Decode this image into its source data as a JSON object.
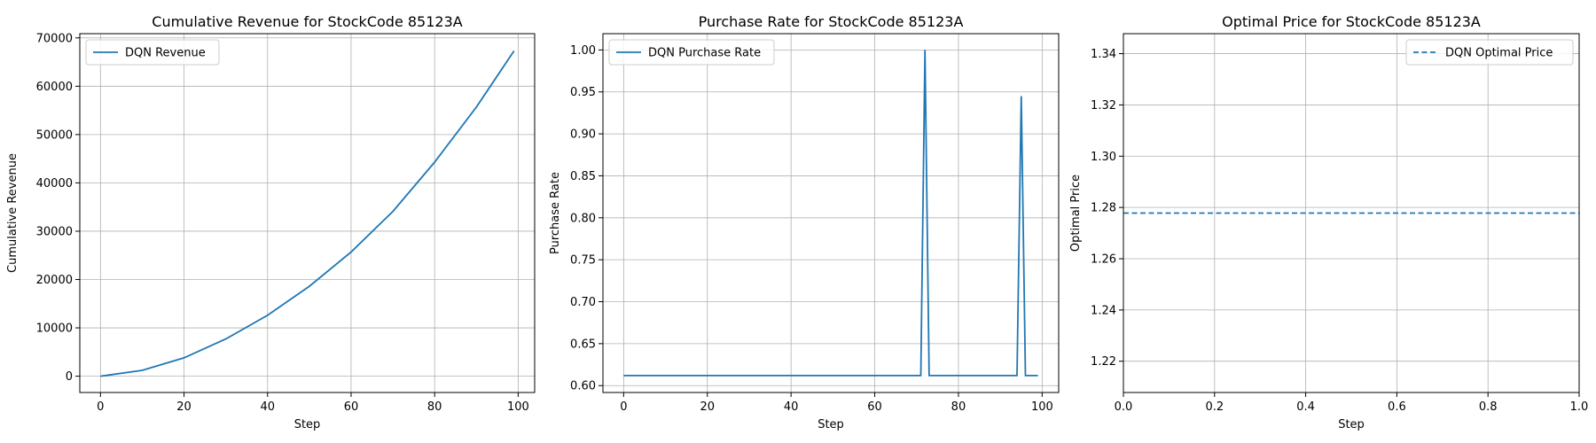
{
  "chart_data": [
    {
      "type": "line",
      "title": "Cumulative Revenue for StockCode 85123A",
      "xlabel": "Step",
      "ylabel": "Cumulative Revenue",
      "xlim": [
        -4.95,
        103.95
      ],
      "ylim": [
        -3375,
        70875
      ],
      "xticks": [
        0,
        20,
        40,
        60,
        80,
        100
      ],
      "yticks": [
        0,
        10000,
        20000,
        30000,
        40000,
        50000,
        60000,
        70000
      ],
      "grid": true,
      "legend": "upper left",
      "series": [
        {
          "name": "DQN Revenue",
          "style": "solid",
          "color": "#1f77b4",
          "x": [
            0,
            10,
            20,
            30,
            40,
            50,
            60,
            70,
            80,
            90,
            99
          ],
          "y": [
            0,
            1200,
            3800,
            7700,
            12600,
            18600,
            25700,
            34100,
            44300,
            55700,
            67300
          ]
        }
      ]
    },
    {
      "type": "line",
      "title": "Purchase Rate for StockCode 85123A",
      "xlabel": "Step",
      "ylabel": "Purchase Rate",
      "xlim": [
        -4.95,
        103.95
      ],
      "ylim": [
        0.5918,
        1.0194
      ],
      "xticks": [
        0,
        20,
        40,
        60,
        80,
        100
      ],
      "yticks": [
        0.6,
        0.65,
        0.7,
        0.75,
        0.8,
        0.85,
        0.9,
        0.95,
        1.0
      ],
      "ytick_labels": [
        "0.60",
        "0.65",
        "0.70",
        "0.75",
        "0.80",
        "0.85",
        "0.90",
        "0.95",
        "1.00"
      ],
      "grid": true,
      "legend": "upper left",
      "series": [
        {
          "name": "DQN Purchase Rate",
          "style": "solid",
          "color": "#1f77b4",
          "x": [
            0,
            71,
            72,
            73,
            94,
            95,
            96,
            99
          ],
          "y": [
            0.612,
            0.612,
            1.0,
            0.612,
            0.612,
            0.945,
            0.612,
            0.612
          ]
        }
      ]
    },
    {
      "type": "line",
      "title": "Optimal Price for StockCode 85123A",
      "xlabel": "Step",
      "ylabel": "Optimal Price",
      "xlim": [
        0,
        1
      ],
      "ylim": [
        1.2078,
        1.3478
      ],
      "xticks": [
        0,
        0.2,
        0.4,
        0.6,
        0.8,
        1.0
      ],
      "xtick_labels": [
        "0.0",
        "0.2",
        "0.4",
        "0.6",
        "0.8",
        "1.0"
      ],
      "yticks": [
        1.22,
        1.24,
        1.26,
        1.28,
        1.3,
        1.32,
        1.34
      ],
      "ytick_labels": [
        "1.22",
        "1.24",
        "1.26",
        "1.28",
        "1.30",
        "1.32",
        "1.34"
      ],
      "grid": true,
      "legend": "upper right",
      "series": [
        {
          "name": "DQN Optimal Price",
          "style": "dashed",
          "color": "#1f77b4",
          "x": [
            0,
            1
          ],
          "y": [
            1.2778,
            1.2778
          ]
        }
      ]
    }
  ]
}
